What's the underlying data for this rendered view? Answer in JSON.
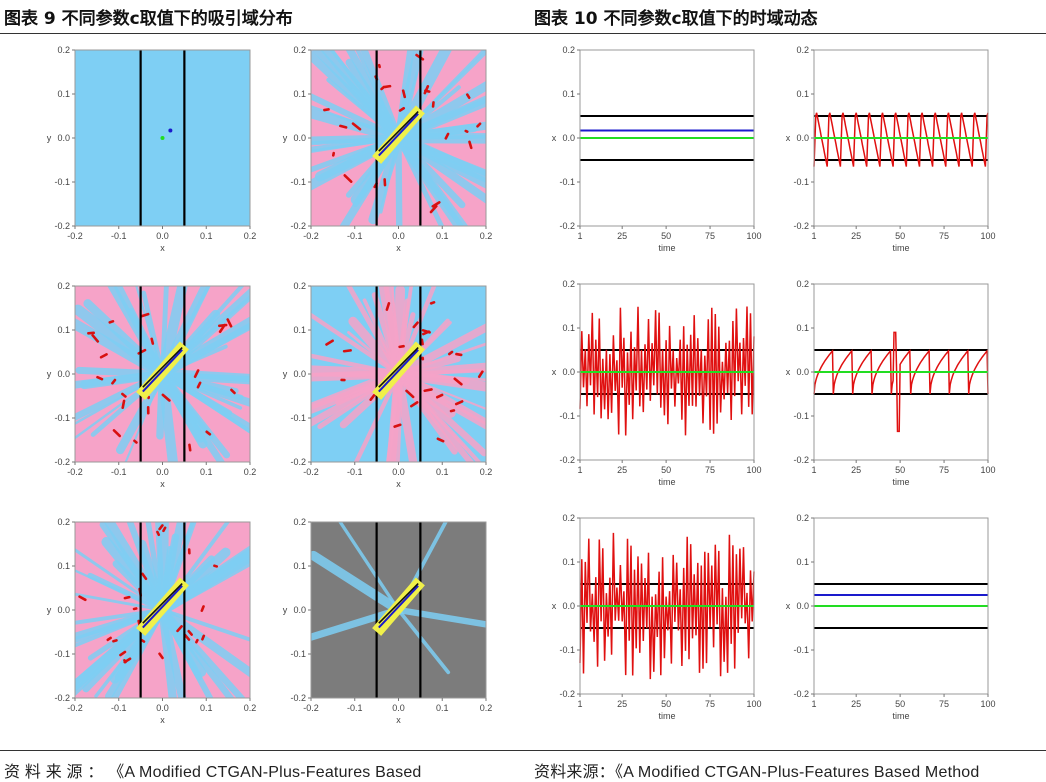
{
  "figure9": {
    "title": "图表 9  不同参数c取值下的吸引域分布",
    "source": "资 料 来 源 ： 《A  Modified  CTGAN-Plus-Features  Based",
    "colors": {
      "blue": "#7ecff4",
      "pink": "#f6a3c8",
      "gray": "#7c7c7c",
      "band": "#f0f04a"
    }
  },
  "figure10": {
    "title": "图表 10 不同参数c取值下的时域动态",
    "source": "资料来源：《A Modified CTGAN-Plus-Features Based Method"
  },
  "chart_data": [
    {
      "type": "heatmap",
      "panel": "9a",
      "background": "blue",
      "band": false,
      "points": [
        {
          "x": 0.018,
          "y": 0.017,
          "color": "blue"
        },
        {
          "x": 0.0,
          "y": 0.0,
          "color": "green"
        }
      ],
      "xlabel": "x",
      "ylabel": "y",
      "xlim": [
        -0.2,
        0.2
      ],
      "ylim": [
        -0.2,
        0.2
      ],
      "xticks": [
        "-0.2",
        "-0.1",
        "0.0",
        "0.1",
        "0.2"
      ],
      "yticks": [
        "0.2",
        "0.1",
        "0.0",
        "-0.1",
        "-0.2"
      ],
      "vlines": [
        -0.05,
        0.05
      ]
    },
    {
      "type": "heatmap",
      "panel": "9b",
      "background": "pink",
      "texture": "blue",
      "band": true,
      "xlabel": "x",
      "ylabel": "y",
      "xlim": [
        -0.2,
        0.2
      ],
      "ylim": [
        -0.2,
        0.2
      ],
      "xticks": [
        "-0.2",
        "-0.1",
        "0.0",
        "0.1",
        "0.2"
      ],
      "yticks": [
        "0.2",
        "0.1",
        "0.0",
        "-0.1",
        "-0.2"
      ],
      "vlines": [
        -0.05,
        0.05
      ]
    },
    {
      "type": "heatmap",
      "panel": "9c",
      "background": "pink",
      "texture": "blue",
      "band": true,
      "xlabel": "x",
      "ylabel": "y",
      "xlim": [
        -0.2,
        0.2
      ],
      "ylim": [
        -0.2,
        0.2
      ],
      "xticks": [
        "-0.2",
        "-0.1",
        "0.0",
        "0.1",
        "0.2"
      ],
      "yticks": [
        "0.2",
        "0.1",
        "0.0",
        "-0.1",
        "-0.2"
      ],
      "vlines": [
        -0.05,
        0.05
      ]
    },
    {
      "type": "heatmap",
      "panel": "9d",
      "background": "blue",
      "texture": "pink",
      "band": true,
      "xlabel": "x",
      "ylabel": "y",
      "xlim": [
        -0.2,
        0.2
      ],
      "ylim": [
        -0.2,
        0.2
      ],
      "xticks": [
        "-0.2",
        "-0.1",
        "0.0",
        "0.1",
        "0.2"
      ],
      "yticks": [
        "0.2",
        "0.1",
        "0.0",
        "-0.1",
        "-0.2"
      ],
      "vlines": [
        -0.05,
        0.05
      ]
    },
    {
      "type": "heatmap",
      "panel": "9e",
      "background": "pink",
      "texture": "blue",
      "band": true,
      "xlabel": "x",
      "ylabel": "y",
      "xlim": [
        -0.2,
        0.2
      ],
      "ylim": [
        -0.2,
        0.2
      ],
      "xticks": [
        "-0.2",
        "-0.1",
        "0.0",
        "0.1",
        "0.2"
      ],
      "yticks": [
        "0.2",
        "0.1",
        "0.0",
        "-0.1",
        "-0.2"
      ],
      "vlines": [
        -0.05,
        0.05
      ]
    },
    {
      "type": "heatmap",
      "panel": "9f",
      "background": "gray",
      "texture": "blue",
      "band": true,
      "xlabel": "x",
      "ylabel": "y",
      "xlim": [
        -0.2,
        0.2
      ],
      "ylim": [
        -0.2,
        0.2
      ],
      "xticks": [
        "-0.2",
        "-0.1",
        "0.0",
        "0.1",
        "0.2"
      ],
      "yticks": [
        "0.2",
        "0.1",
        "0.0",
        "-0.1",
        "-0.2"
      ],
      "vlines": [
        -0.05,
        0.05
      ]
    },
    {
      "type": "line",
      "panel": "10a",
      "xlabel": "time",
      "ylabel": "x",
      "xlim": [
        1,
        100
      ],
      "ylim": [
        -0.2,
        0.2
      ],
      "xticks": [
        "1",
        "25",
        "50",
        "75",
        "100"
      ],
      "yticks": [
        "0.2",
        "0.1",
        "0.0",
        "-0.1",
        "-0.2"
      ],
      "hlines": [
        {
          "y": 0.05,
          "color": "#000000"
        },
        {
          "y": -0.05,
          "color": "#000000"
        },
        {
          "y": 0.017,
          "color": "#1a1acc"
        },
        {
          "y": 0.0,
          "color": "#22dd22"
        }
      ],
      "series": []
    },
    {
      "type": "line",
      "panel": "10b",
      "xlabel": "time",
      "ylabel": "x",
      "xlim": [
        1,
        100
      ],
      "ylim": [
        -0.2,
        0.2
      ],
      "xticks": [
        "1",
        "25",
        "50",
        "75",
        "100"
      ],
      "yticks": [
        "0.2",
        "0.1",
        "0.0",
        "-0.1",
        "-0.2"
      ],
      "hlines": [
        {
          "y": 0.05,
          "color": "#000000"
        },
        {
          "y": -0.05,
          "color": "#000000"
        },
        {
          "y": 0.0,
          "color": "#22dd22"
        }
      ],
      "series": [
        {
          "name": "x",
          "pattern": "sawtooth",
          "period": 7.5,
          "high": 0.065,
          "low": -0.065
        }
      ]
    },
    {
      "type": "line",
      "panel": "10c",
      "xlabel": "time",
      "ylabel": "x",
      "xlim": [
        1,
        100
      ],
      "ylim": [
        -0.2,
        0.2
      ],
      "xticks": [
        "1",
        "25",
        "50",
        "75",
        "100"
      ],
      "yticks": [
        "0.2",
        "0.1",
        "0.0",
        "-0.1",
        "-0.2"
      ],
      "hlines": [
        {
          "y": 0.05,
          "color": "#000000"
        },
        {
          "y": -0.05,
          "color": "#000000"
        },
        {
          "y": 0.0,
          "color": "#22dd22"
        }
      ],
      "series": [
        {
          "name": "x",
          "pattern": "chaotic",
          "amp": 0.13,
          "seed": 7
        }
      ]
    },
    {
      "type": "line",
      "panel": "10d",
      "xlabel": "time",
      "ylabel": "x",
      "xlim": [
        1,
        100
      ],
      "ylim": [
        -0.2,
        0.2
      ],
      "xticks": [
        "1",
        "25",
        "50",
        "75",
        "100"
      ],
      "yticks": [
        "0.2",
        "0.1",
        "0.0",
        "-0.1",
        "-0.2"
      ],
      "hlines": [
        {
          "y": 0.05,
          "color": "#000000"
        },
        {
          "y": -0.05,
          "color": "#000000"
        },
        {
          "y": 0.0,
          "color": "#22dd22"
        }
      ],
      "series": [
        {
          "name": "x",
          "pattern": "decay",
          "period": 11,
          "high": 0.05,
          "low": -0.05,
          "spike": [
            {
              "t": 47,
              "v": 0.09
            },
            {
              "t": 49,
              "v": -0.135
            }
          ]
        }
      ]
    },
    {
      "type": "line",
      "panel": "10e",
      "xlabel": "time",
      "ylabel": "x",
      "xlim": [
        1,
        100
      ],
      "ylim": [
        -0.2,
        0.2
      ],
      "xticks": [
        "1",
        "25",
        "50",
        "75",
        "100"
      ],
      "yticks": [
        "0.2",
        "0.1",
        "0.0",
        "-0.1",
        "-0.2"
      ],
      "hlines": [
        {
          "y": 0.05,
          "color": "#000000"
        },
        {
          "y": -0.05,
          "color": "#000000"
        },
        {
          "y": 0.0,
          "color": "#22dd22"
        }
      ],
      "series": [
        {
          "name": "x",
          "pattern": "chaotic",
          "amp": 0.15,
          "seed": 13
        }
      ]
    },
    {
      "type": "line",
      "panel": "10f",
      "xlabel": "time",
      "ylabel": "x",
      "xlim": [
        1,
        100
      ],
      "ylim": [
        -0.2,
        0.2
      ],
      "xticks": [
        "1",
        "25",
        "50",
        "75",
        "100"
      ],
      "yticks": [
        "0.2",
        "0.1",
        "0.0",
        "-0.1",
        "-0.2"
      ],
      "hlines": [
        {
          "y": 0.05,
          "color": "#000000"
        },
        {
          "y": -0.05,
          "color": "#000000"
        },
        {
          "y": 0.025,
          "color": "#1a1acc"
        },
        {
          "y": 0.0,
          "color": "#22dd22"
        }
      ],
      "series": []
    }
  ]
}
